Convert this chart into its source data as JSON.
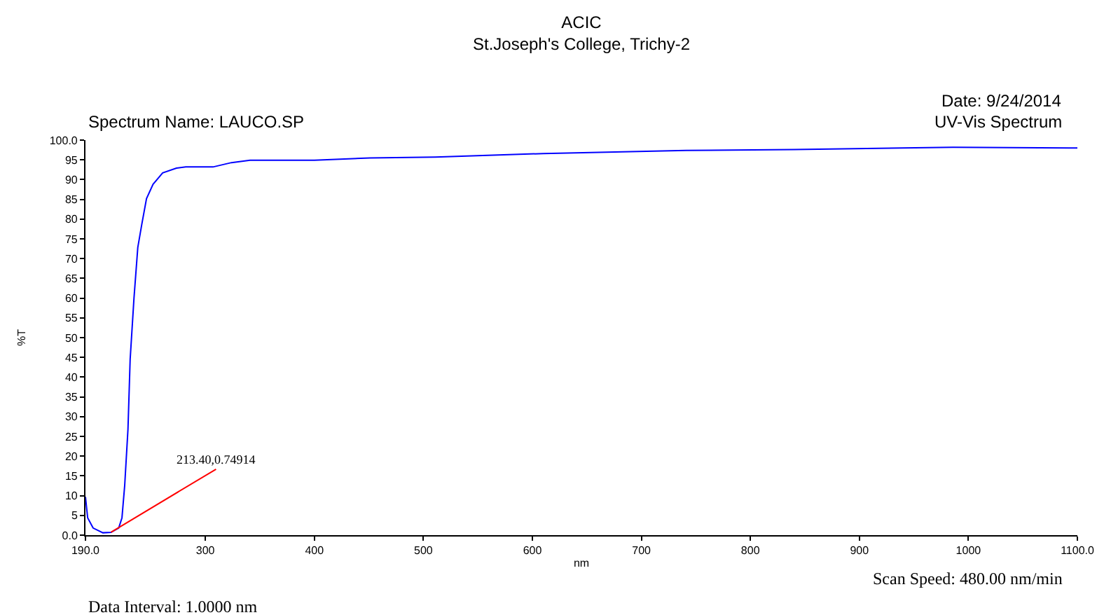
{
  "chart_data": {
    "type": "line",
    "title": "ACIC",
    "subtitle": "St.Joseph's College, Trichy-2",
    "xlabel": "nm",
    "ylabel": "%T",
    "x": [
      190,
      192,
      197,
      206,
      213.4,
      220.5,
      223.5,
      226,
      229,
      231,
      234.5,
      238,
      241.7,
      246,
      252,
      260.8,
      273.5,
      282,
      307,
      324,
      341,
      400,
      451,
      511,
      610,
      741,
      840,
      986,
      1100
    ],
    "series": [
      {
        "color": "#0000ff",
        "values": [
          9.7,
          4.4,
          1.8,
          0.6,
          0.7,
          1.8,
          4.4,
          12.6,
          26.8,
          44.5,
          59.9,
          72.8,
          78.7,
          85.2,
          88.8,
          91.7,
          92.9,
          93.2,
          93.2,
          94.3,
          94.9,
          94.9,
          95.5,
          95.7,
          96.6,
          97.4,
          97.6,
          98.2,
          98.0
        ]
      }
    ],
    "xlim": [
      190,
      1100
    ],
    "xticks": [
      {
        "value": 190,
        "label": "190.0"
      },
      300,
      400,
      500,
      600,
      700,
      800,
      900,
      1000,
      {
        "value": 1100,
        "label": "1100.0"
      }
    ],
    "ylim": [
      0,
      100
    ],
    "yticks": [
      {
        "value": 0,
        "label": "0.0"
      },
      5,
      10,
      15,
      20,
      25,
      30,
      35,
      40,
      45,
      50,
      55,
      60,
      65,
      70,
      75,
      80,
      85,
      90,
      95,
      {
        "value": 100,
        "label": "100.0"
      }
    ],
    "annotations": [
      {
        "text": "213.40,0.74914",
        "x": 213.4,
        "y": 0.74914
      },
      "Spectrum Name: LAUCO.SP",
      "Date: 9/24/2014",
      "UV-Vis Spectrum",
      "Data Interval: 1.0000 nm",
      "Scan Speed: 480.00 nm/min"
    ],
    "grid": false,
    "marker": "none",
    "line_style": "solid"
  }
}
